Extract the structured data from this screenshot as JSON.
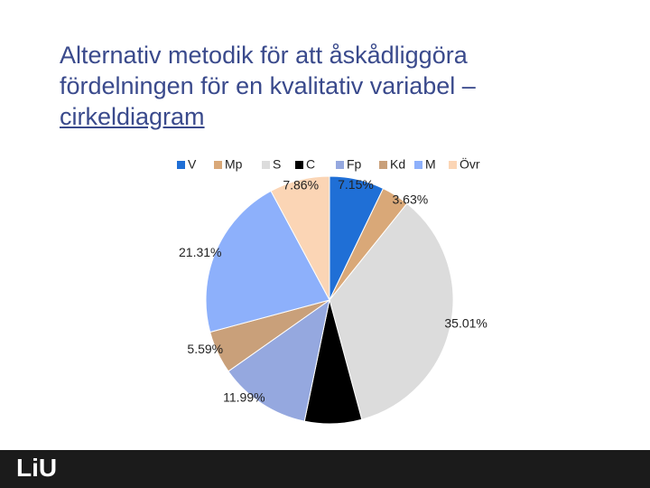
{
  "title": "Alternativ metodik för att åskådliggöra fördelningen för en kvalitativ variabel –",
  "title_link": "cirkeldiagram",
  "chart_data": {
    "type": "pie",
    "categories": [
      "V",
      "Mp",
      "S",
      "C",
      "Fp",
      "Kd",
      "M",
      "Övr"
    ],
    "values": [
      7.15,
      3.63,
      35.01,
      7.46,
      11.99,
      5.59,
      21.31,
      7.86
    ],
    "value_labels": [
      "7.15%",
      "3.63%",
      "35.01%",
      null,
      "11.99%",
      "5.59%",
      "21.31%",
      "7.86%"
    ],
    "colors": [
      "#1f6fd6",
      "#d9a878",
      "#dcdcdc",
      "#000000",
      "#95a8df",
      "#c9a07a",
      "#8db0fb",
      "#fbd5b5"
    ],
    "legend": "top"
  },
  "footer": {
    "logo": "LiU"
  }
}
